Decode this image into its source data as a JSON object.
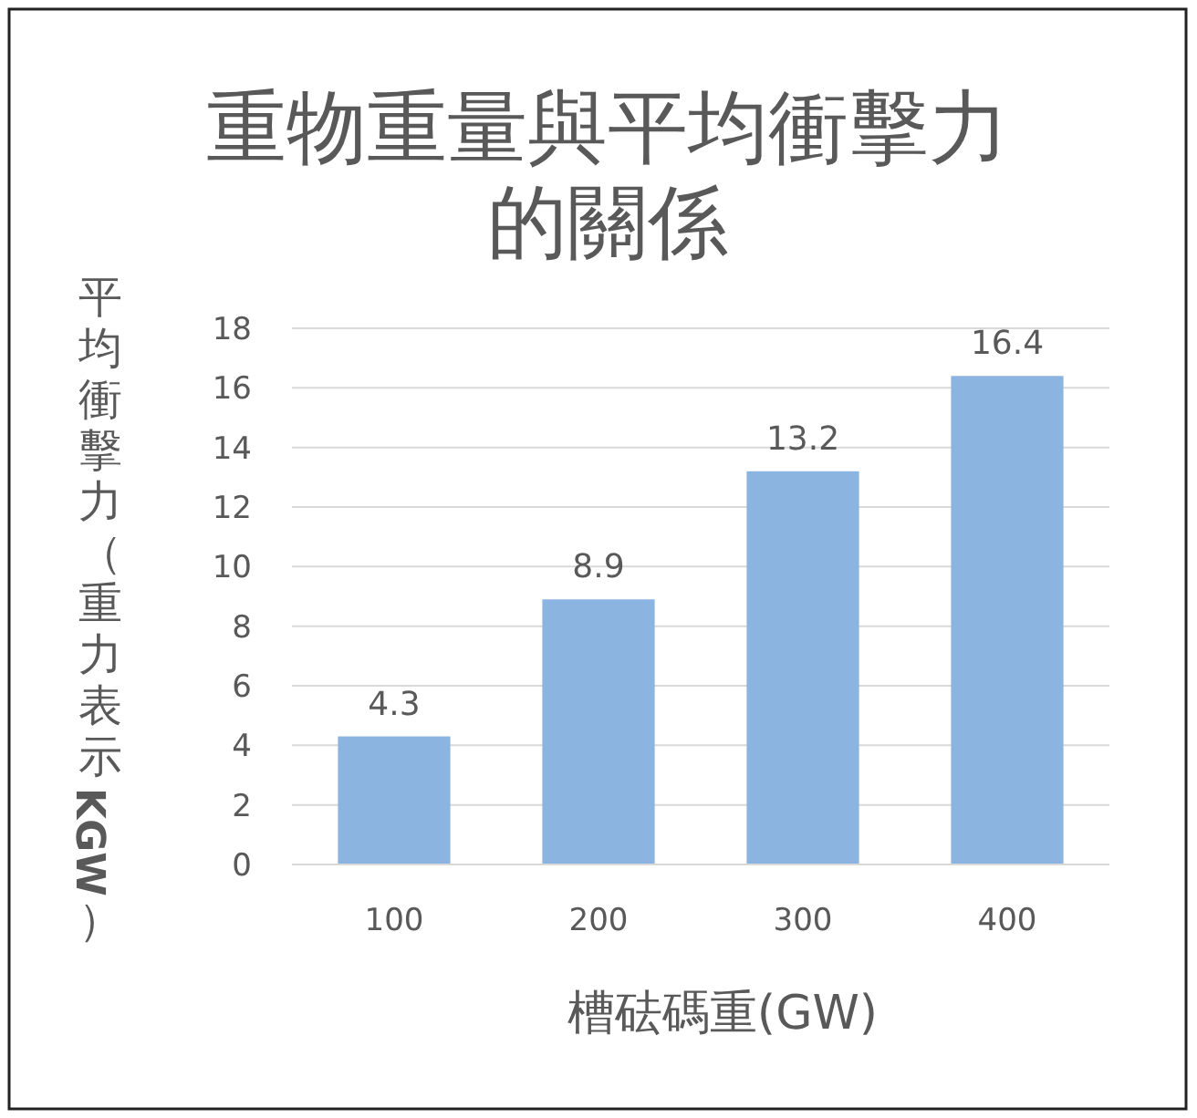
{
  "chart_data": {
    "type": "bar",
    "title": "重物重量與平均衝擊力的關係",
    "xlabel": "槽砝碼重(GW)",
    "ylabel": "平均衝擊力（重力表示KGW）",
    "categories": [
      "100",
      "200",
      "300",
      "400"
    ],
    "values": [
      4.3,
      8.9,
      13.2,
      16.4
    ],
    "color": "#8cb4e0",
    "ylim": [
      0,
      18
    ],
    "yticks": [
      0,
      2,
      4,
      6,
      8,
      10,
      12,
      14,
      16,
      18
    ],
    "grid": "y",
    "data_labels": true
  }
}
